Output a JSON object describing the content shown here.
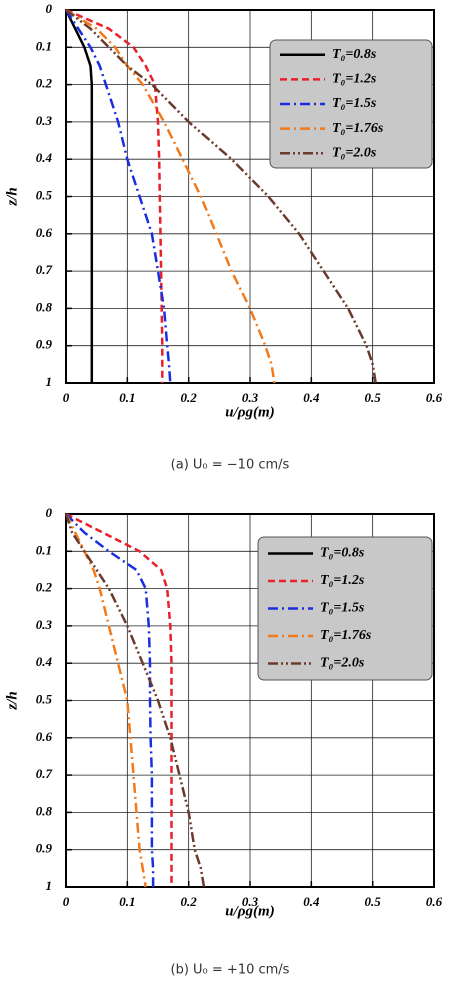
{
  "chart_data": [
    {
      "type": "line",
      "x_label": "u/ρg(m)",
      "y_label": "z/h",
      "caption": "(a)  U₀ = −10 cm/s",
      "xlim": [
        0,
        0.6
      ],
      "xticks": [
        0,
        0.1,
        0.2,
        0.3,
        0.4,
        0.5,
        0.6
      ],
      "ylim": [
        0,
        1
      ],
      "yticks": [
        0,
        0.1,
        0.2,
        0.3,
        0.4,
        0.5,
        0.6,
        0.7,
        0.8,
        0.9,
        1
      ],
      "y_inverted": true,
      "grid": true,
      "legend": "upper right",
      "series": [
        {
          "name": "T₀=0.8s",
          "color": "#000000",
          "dash": "solid",
          "x": [
            0,
            0.015,
            0.03,
            0.04,
            0.042,
            0.042,
            0.042,
            0.042,
            0.042,
            0.042,
            0.042,
            0.042,
            0.042,
            0.042
          ],
          "values": [
            0,
            0.05,
            0.1,
            0.15,
            0.2,
            0.3,
            0.4,
            0.5,
            0.6,
            0.7,
            0.8,
            0.9,
            0.95,
            1
          ]
        },
        {
          "name": "T₀=1.2s",
          "color": "#e8202a",
          "dash": "dash",
          "x": [
            0,
            0.07,
            0.11,
            0.13,
            0.145,
            0.15,
            0.152,
            0.153,
            0.154,
            0.155,
            0.156,
            0.157,
            0.157,
            0.157
          ],
          "values": [
            0,
            0.05,
            0.1,
            0.15,
            0.2,
            0.3,
            0.4,
            0.5,
            0.6,
            0.7,
            0.8,
            0.9,
            0.95,
            1
          ]
        },
        {
          "name": "T₀=1.5s",
          "color": "#1a2ee0",
          "dash": "dashdot",
          "x": [
            0,
            0.02,
            0.04,
            0.055,
            0.065,
            0.085,
            0.1,
            0.12,
            0.14,
            0.15,
            0.16,
            0.165,
            0.168,
            0.17
          ],
          "values": [
            0,
            0.05,
            0.1,
            0.15,
            0.2,
            0.3,
            0.4,
            0.5,
            0.6,
            0.7,
            0.8,
            0.9,
            0.95,
            1
          ]
        },
        {
          "name": "T₀=1.76s",
          "color": "#f07a1c",
          "dash": "dashdot",
          "x": [
            0,
            0.05,
            0.08,
            0.1,
            0.125,
            0.16,
            0.19,
            0.22,
            0.245,
            0.27,
            0.3,
            0.325,
            0.335,
            0.34
          ],
          "values": [
            0,
            0.05,
            0.1,
            0.15,
            0.2,
            0.3,
            0.4,
            0.5,
            0.6,
            0.7,
            0.8,
            0.9,
            0.95,
            1
          ]
        },
        {
          "name": "T₀=2.0s",
          "color": "#6b3a2c",
          "dash": "dashdotdot",
          "x": [
            0,
            0.04,
            0.07,
            0.1,
            0.14,
            0.2,
            0.27,
            0.33,
            0.38,
            0.42,
            0.46,
            0.49,
            0.5,
            0.505
          ],
          "values": [
            0,
            0.05,
            0.1,
            0.15,
            0.2,
            0.3,
            0.4,
            0.5,
            0.6,
            0.7,
            0.8,
            0.9,
            0.95,
            1
          ]
        }
      ]
    },
    {
      "type": "line",
      "x_label": "u/ρg(m)",
      "y_label": "z/h",
      "caption": "(b)  U₀ = +10 cm/s",
      "xlim": [
        0,
        0.6
      ],
      "xticks": [
        0,
        0.1,
        0.2,
        0.3,
        0.4,
        0.5,
        0.6
      ],
      "ylim": [
        0,
        1
      ],
      "yticks": [
        0,
        0.1,
        0.2,
        0.3,
        0.4,
        0.5,
        0.6,
        0.7,
        0.8,
        0.9,
        1
      ],
      "y_inverted": true,
      "grid": true,
      "legend": "upper right",
      "series": [
        {
          "name": "T₀=0.8s",
          "color": "#000000",
          "dash": "solid",
          "x": [
            null,
            null,
            null,
            null,
            null,
            null,
            null,
            null,
            null,
            null,
            null,
            null,
            null,
            null
          ],
          "values": [
            null,
            null,
            null,
            null,
            null,
            null,
            null,
            null,
            null,
            null,
            null,
            null,
            null,
            null
          ]
        },
        {
          "name": "T₀=1.2s",
          "color": "#e8202a",
          "dash": "dash",
          "x": [
            0,
            0.06,
            0.12,
            0.155,
            0.165,
            0.17,
            0.172,
            0.172,
            0.172,
            0.172,
            0.172,
            0.172,
            0.172,
            0.172
          ],
          "values": [
            0,
            0.05,
            0.1,
            0.15,
            0.2,
            0.3,
            0.4,
            0.5,
            0.6,
            0.7,
            0.8,
            0.9,
            0.95,
            1
          ]
        },
        {
          "name": "T₀=1.5s",
          "color": "#1a2ee0",
          "dash": "dashdot",
          "x": [
            0,
            0.03,
            0.07,
            0.115,
            0.13,
            0.135,
            0.137,
            0.137,
            0.138,
            0.14,
            0.14,
            0.14,
            0.142,
            0.142
          ],
          "values": [
            0,
            0.05,
            0.1,
            0.15,
            0.2,
            0.3,
            0.4,
            0.5,
            0.6,
            0.7,
            0.8,
            0.9,
            0.95,
            1
          ]
        },
        {
          "name": "T₀=1.76s",
          "color": "#f07a1c",
          "dash": "dashdot",
          "x": [
            0,
            0.015,
            0.03,
            0.045,
            0.055,
            0.07,
            0.085,
            0.1,
            0.105,
            0.11,
            0.115,
            0.12,
            0.125,
            0.13
          ],
          "values": [
            0,
            0.05,
            0.1,
            0.15,
            0.2,
            0.3,
            0.4,
            0.5,
            0.6,
            0.7,
            0.8,
            0.9,
            0.95,
            1
          ]
        },
        {
          "name": "T₀=2.0s",
          "color": "#6b3a2c",
          "dash": "dashdotdot",
          "x": [
            0,
            0.01,
            0.03,
            0.05,
            0.07,
            0.1,
            0.125,
            0.15,
            0.17,
            0.185,
            0.2,
            0.21,
            0.22,
            0.225
          ],
          "values": [
            0,
            0.05,
            0.1,
            0.15,
            0.2,
            0.3,
            0.4,
            0.5,
            0.6,
            0.7,
            0.8,
            0.9,
            0.95,
            1
          ]
        }
      ]
    }
  ]
}
